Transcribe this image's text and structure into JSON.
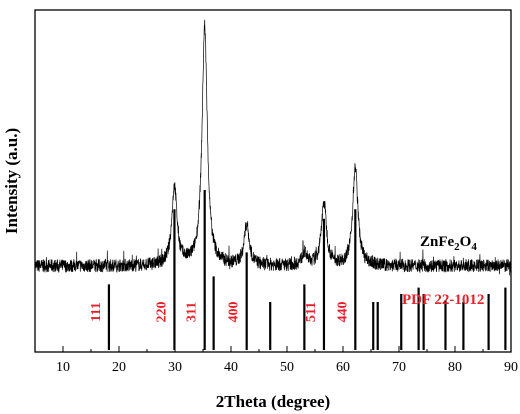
{
  "chart_data": {
    "type": "line",
    "xlabel": "2Theta (degree)",
    "ylabel": "Intensity (a.u.)",
    "xlim": [
      5,
      90
    ],
    "xticks": [
      10,
      20,
      30,
      40,
      50,
      60,
      70,
      80,
      90
    ],
    "y_ticks_labeled": false,
    "grid": false,
    "sample": {
      "name": "ZnFe",
      "sub1": "2",
      "mid": "O",
      "sub2": "4",
      "peaks": [
        {
          "two_theta": 29.9,
          "intensity": 0.33
        },
        {
          "two_theta": 35.3,
          "intensity": 1.0
        },
        {
          "two_theta": 42.8,
          "intensity": 0.17
        },
        {
          "two_theta": 53.1,
          "intensity": 0.05
        },
        {
          "two_theta": 56.6,
          "intensity": 0.26
        },
        {
          "two_theta": 62.2,
          "intensity": 0.41
        }
      ]
    },
    "reference": {
      "label": "PDF 22-1012",
      "lines": [
        {
          "two_theta": 18.2,
          "intensity": 0.41
        },
        {
          "two_theta": 29.9,
          "intensity": 0.88
        },
        {
          "two_theta": 35.3,
          "intensity": 1.0
        },
        {
          "two_theta": 36.9,
          "intensity": 0.46
        },
        {
          "two_theta": 42.8,
          "intensity": 0.61
        },
        {
          "two_theta": 47.0,
          "intensity": 0.3
        },
        {
          "two_theta": 53.1,
          "intensity": 0.41
        },
        {
          "two_theta": 56.6,
          "intensity": 0.82
        },
        {
          "two_theta": 62.2,
          "intensity": 0.88
        },
        {
          "two_theta": 65.4,
          "intensity": 0.3
        },
        {
          "two_theta": 66.2,
          "intensity": 0.3
        },
        {
          "two_theta": 70.4,
          "intensity": 0.35
        },
        {
          "two_theta": 73.5,
          "intensity": 0.39
        },
        {
          "two_theta": 74.4,
          "intensity": 0.35
        },
        {
          "two_theta": 78.3,
          "intensity": 0.31
        },
        {
          "two_theta": 81.5,
          "intensity": 0.3
        },
        {
          "two_theta": 86.0,
          "intensity": 0.35
        },
        {
          "two_theta": 89.0,
          "intensity": 0.39
        }
      ],
      "hkl": [
        {
          "text": "111",
          "two_theta": 18.2
        },
        {
          "text": "220",
          "two_theta": 29.9
        },
        {
          "text": "311",
          "two_theta": 35.3
        },
        {
          "text": "400",
          "two_theta": 42.8
        },
        {
          "text": "511",
          "two_theta": 56.6
        },
        {
          "text": "440",
          "two_theta": 62.2
        }
      ]
    }
  }
}
